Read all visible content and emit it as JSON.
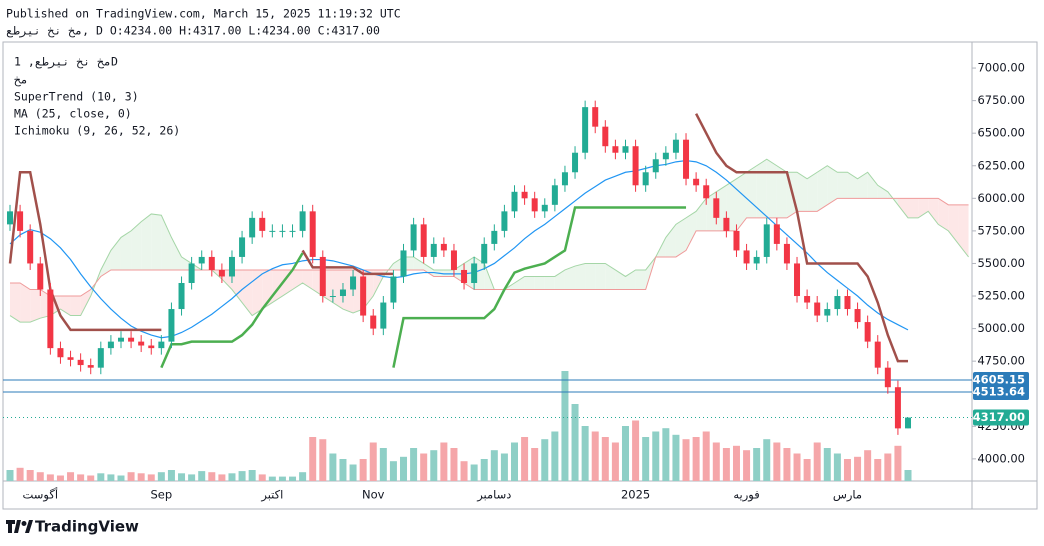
{
  "chart_data": {
    "type": "candlestick",
    "header": "Published on TradingView.com, March 15, 2025 11:19:32 UTC",
    "symbol_line": "مخ نخ نیرطع, D O:4234.00 H:4317.00 L:4234.00 C:4317.00",
    "legend": [
      "مخ نخ نیرطع, 1D",
      "مخ"
    ],
    "footer": "TradingView",
    "categories": [
      null,
      null,
      null,
      "أگوست",
      null,
      null,
      null,
      null,
      null,
      null,
      null,
      null,
      null,
      null,
      null,
      "Sep",
      null,
      null,
      null,
      null,
      null,
      null,
      null,
      null,
      null,
      null,
      "اكتبر",
      null,
      null,
      null,
      null,
      null,
      null,
      null,
      null,
      null,
      "Nov",
      null,
      null,
      null,
      null,
      null,
      null,
      null,
      null,
      null,
      null,
      null,
      "دسامبر",
      null,
      null,
      null,
      null,
      null,
      null,
      null,
      null,
      null,
      null,
      null,
      null,
      null,
      "2025",
      null,
      null,
      null,
      null,
      null,
      null,
      null,
      null,
      null,
      null,
      "فوريه",
      null,
      null,
      null,
      null,
      null,
      null,
      null,
      null,
      null,
      "مارس",
      null,
      null,
      null,
      null,
      null,
      null,
      null,
      null,
      null,
      null,
      null,
      null
    ],
    "open": [
      5800,
      5900,
      5750,
      5500,
      5300,
      4850,
      4780,
      4760,
      4720,
      4700,
      4850,
      4900,
      4930,
      4900,
      4870,
      4850,
      4900,
      5150,
      5350,
      5500,
      5550,
      5450,
      5400,
      5550,
      5700,
      5850,
      5750,
      5750,
      5750,
      5750,
      5900,
      5550,
      5250,
      5250,
      5300,
      5400,
      5100,
      5000,
      5200,
      5400,
      5600,
      5800,
      5550,
      5650,
      5600,
      5450,
      5350,
      5500,
      5650,
      5750,
      5900,
      6050,
      6000,
      5900,
      5950,
      6100,
      6200,
      6350,
      6700,
      6550,
      6400,
      6350,
      6400,
      6100,
      6200,
      6300,
      6350,
      6450,
      6150,
      6100,
      6000,
      5850,
      5750,
      5600,
      5500,
      5550,
      5800,
      5650,
      5500,
      5250,
      5200,
      5100,
      5150,
      5250,
      5150,
      5050,
      4900,
      4700,
      4550,
      4234,
      null,
      null,
      null,
      null,
      null,
      null
    ],
    "high": [
      5950,
      5950,
      5800,
      5550,
      5350,
      4900,
      4830,
      4810,
      4770,
      4900,
      4950,
      4980,
      4980,
      4950,
      4920,
      4950,
      5200,
      5400,
      5550,
      5600,
      5600,
      5500,
      5600,
      5750,
      5900,
      5900,
      5800,
      5800,
      5800,
      5950,
      5950,
      5600,
      5300,
      5350,
      5450,
      5450,
      5150,
      5250,
      5450,
      5650,
      5850,
      5850,
      5700,
      5700,
      5650,
      5500,
      5550,
      5700,
      5800,
      5950,
      6100,
      6100,
      6050,
      6000,
      6150,
      6250,
      6400,
      6750,
      6750,
      6600,
      6450,
      6450,
      6450,
      6250,
      6350,
      6400,
      6500,
      6500,
      6200,
      6150,
      6050,
      5900,
      5800,
      5650,
      5600,
      5850,
      5850,
      5700,
      5550,
      5300,
      5250,
      5200,
      5300,
      5300,
      5200,
      5100,
      4950,
      4750,
      4600,
      4317,
      null,
      null,
      null,
      null,
      null,
      null
    ],
    "low": [
      5750,
      5700,
      5450,
      5250,
      4800,
      4730,
      4710,
      4670,
      4650,
      4650,
      4800,
      4850,
      4850,
      4820,
      4800,
      4800,
      4850,
      5100,
      5300,
      5450,
      5400,
      5350,
      5350,
      5500,
      5650,
      5700,
      5700,
      5700,
      5700,
      5700,
      5500,
      5200,
      5200,
      5200,
      5250,
      5050,
      4950,
      4950,
      5150,
      5350,
      5550,
      5500,
      5500,
      5550,
      5400,
      5300,
      5300,
      5450,
      5600,
      5700,
      5850,
      5950,
      5850,
      5850,
      5900,
      6050,
      6150,
      6300,
      6500,
      6350,
      6300,
      6300,
      6050,
      6050,
      6150,
      6250,
      6300,
      6100,
      6050,
      5950,
      5800,
      5700,
      5550,
      5450,
      5450,
      5500,
      5600,
      5450,
      5200,
      5150,
      5050,
      5050,
      5100,
      5100,
      5000,
      4850,
      4650,
      4500,
      4184,
      4234,
      null,
      null,
      null,
      null,
      null,
      null
    ],
    "close": [
      5900,
      5750,
      5500,
      5300,
      4850,
      4780,
      4760,
      4720,
      4700,
      4850,
      4900,
      4930,
      4900,
      4870,
      4850,
      4900,
      5150,
      5350,
      5500,
      5550,
      5450,
      5400,
      5550,
      5700,
      5850,
      5750,
      5750,
      5750,
      5750,
      5900,
      5550,
      5250,
      5250,
      5300,
      5400,
      5100,
      5000,
      5200,
      5400,
      5600,
      5800,
      5550,
      5650,
      5600,
      5450,
      5350,
      5500,
      5650,
      5750,
      5900,
      6050,
      6000,
      5900,
      5950,
      6100,
      6200,
      6350,
      6700,
      6550,
      6400,
      6350,
      6400,
      6100,
      6200,
      6300,
      6350,
      6450,
      6150,
      6100,
      6000,
      5850,
      5750,
      5600,
      5500,
      5550,
      5800,
      5650,
      5500,
      5250,
      5200,
      5100,
      5150,
      5250,
      5150,
      5050,
      4900,
      4700,
      4550,
      4234,
      4317,
      null,
      null,
      null,
      null,
      null,
      null
    ],
    "volume": [
      10,
      12,
      10,
      8,
      6,
      5,
      8,
      6,
      5,
      7,
      6,
      5,
      8,
      7,
      6,
      8,
      10,
      7,
      6,
      9,
      8,
      6,
      7,
      9,
      10,
      6,
      4,
      4,
      4,
      8,
      40,
      38,
      25,
      20,
      15,
      20,
      35,
      30,
      18,
      22,
      30,
      25,
      28,
      35,
      30,
      18,
      15,
      20,
      28,
      25,
      35,
      40,
      30,
      38,
      45,
      100,
      70,
      50,
      45,
      40,
      35,
      50,
      55,
      40,
      45,
      48,
      42,
      38,
      40,
      45,
      35,
      30,
      32,
      28,
      30,
      38,
      35,
      30,
      25,
      20,
      35,
      30,
      25,
      20,
      22,
      28,
      20,
      25,
      32,
      10,
      null,
      null,
      null,
      null,
      null,
      null
    ],
    "vlim": [
      0,
      100
    ],
    "up_color": "#22ab94",
    "down_color": "#f23645",
    "volume_up_color": "#8ecfc6",
    "volume_down_color": "#f5a6a9",
    "ylim": [
      3830,
      7200
    ],
    "yticks": [
      {
        "value": 4000,
        "label": "4000.00"
      },
      {
        "value": 4250,
        "label": "4250.00"
      },
      {
        "value": 4500,
        "label": "4500.00"
      },
      {
        "value": 4750,
        "label": "4750.00"
      },
      {
        "value": 5000,
        "label": "5000.00"
      },
      {
        "value": 5250,
        "label": "5250.00"
      },
      {
        "value": 5500,
        "label": "5500.00"
      },
      {
        "value": 5750,
        "label": "5750.00"
      },
      {
        "value": 6000,
        "label": "6000.00"
      },
      {
        "value": 6250,
        "label": "6250.00"
      },
      {
        "value": 6500,
        "label": "6500.00"
      },
      {
        "value": 6750,
        "label": "6750.00"
      },
      {
        "value": 7000,
        "label": "7000.00"
      }
    ],
    "price_lines": [
      {
        "value": 4605.15,
        "color": "#2b7bb9",
        "style": "solid"
      },
      {
        "value": 4513.64,
        "color": "#2b7bb9",
        "style": "solid"
      },
      {
        "value": {
          "value": 4317,
          "label": "4317.00"
        },
        "color": "#22ab94",
        "style": "dotted"
      }
    ],
    "supertrend": {
      "label": "SuperTrend (10, 3)",
      "up_color": "#4caf50",
      "down_color": "#a1504b",
      "up": [
        null,
        null,
        null,
        null,
        null,
        null,
        null,
        null,
        null,
        null,
        null,
        null,
        null,
        null,
        null,
        4700,
        4880,
        4880,
        4900,
        4900,
        4900,
        4900,
        4900,
        4950,
        5030,
        5150,
        5250,
        5350,
        5450,
        5580,
        null,
        null,
        null,
        null,
        null,
        null,
        null,
        null,
        4700,
        5080,
        5080,
        5080,
        5080,
        5080,
        5080,
        5080,
        5080,
        5080,
        5150,
        5300,
        5430,
        5460,
        5480,
        5500,
        5550,
        5600,
        5930,
        5930,
        5930,
        5930,
        5930,
        5930,
        5930,
        5930,
        5930,
        5930,
        5930,
        5930,
        null,
        null,
        null,
        null,
        null,
        null,
        null,
        null,
        null,
        null,
        null,
        null,
        null,
        null,
        null,
        null,
        null,
        null,
        null,
        null,
        null,
        null,
        null,
        null,
        null,
        null,
        null,
        null
      ],
      "down": [
        5500,
        6200,
        6200,
        5800,
        5300,
        5100,
        4990,
        4990,
        4990,
        4990,
        4990,
        4990,
        4990,
        4990,
        4990,
        4990,
        null,
        null,
        null,
        null,
        null,
        null,
        null,
        null,
        null,
        null,
        null,
        null,
        null,
        5600,
        5470,
        5470,
        5470,
        5470,
        5470,
        5420,
        5420,
        5420,
        5420,
        null,
        null,
        null,
        null,
        null,
        null,
        null,
        null,
        null,
        null,
        null,
        null,
        null,
        null,
        null,
        null,
        null,
        null,
        null,
        null,
        null,
        null,
        null,
        null,
        null,
        null,
        null,
        null,
        null,
        6650,
        6500,
        6350,
        6250,
        6200,
        6200,
        6200,
        6200,
        6200,
        6200,
        5900,
        5500,
        5500,
        5500,
        5500,
        5500,
        5500,
        5400,
        5200,
        4950,
        4750,
        4750,
        null,
        null,
        null,
        null,
        null,
        null
      ]
    },
    "ma": {
      "label": "MA (25, close, 0)",
      "color": "#2196f3",
      "values": [
        5650,
        5720,
        5760,
        5740,
        5690,
        5620,
        5530,
        5420,
        5320,
        5230,
        5150,
        5080,
        5020,
        4980,
        4950,
        4930,
        4940,
        4970,
        5010,
        5060,
        5110,
        5170,
        5230,
        5300,
        5360,
        5420,
        5460,
        5490,
        5500,
        5520,
        5530,
        5530,
        5520,
        5500,
        5480,
        5450,
        5420,
        5400,
        5390,
        5400,
        5420,
        5430,
        5430,
        5420,
        5420,
        5420,
        5430,
        5460,
        5500,
        5560,
        5620,
        5690,
        5750,
        5800,
        5860,
        5920,
        5980,
        6040,
        6090,
        6140,
        6170,
        6200,
        6210,
        6230,
        6250,
        6260,
        6280,
        6290,
        6280,
        6250,
        6200,
        6140,
        6070,
        6000,
        5930,
        5860,
        5790,
        5720,
        5650,
        5580,
        5500,
        5430,
        5370,
        5310,
        5250,
        5180,
        5120,
        5070,
        5030,
        4990,
        null,
        null,
        null,
        null,
        null,
        null
      ]
    },
    "ichimoku": {
      "label": "Ichimoku (9, 26, 52, 26)",
      "span_a_color": "#a5d6a7",
      "span_b_color": "#ef9a9a",
      "fill_up_color": "#e8f5e9",
      "fill_down_color": "#fde3e3",
      "span_a": [
        5100,
        5050,
        5050,
        5080,
        5100,
        5150,
        5100,
        5100,
        5250,
        5450,
        5600,
        5700,
        5750,
        5820,
        5880,
        5870,
        5700,
        5550,
        5500,
        5450,
        5450,
        5380,
        5300,
        5200,
        5100,
        5150,
        5200,
        5250,
        5300,
        5350,
        5300,
        5250,
        5200,
        5150,
        5120,
        5150,
        5250,
        5400,
        5500,
        5550,
        5550,
        5500,
        5450,
        5450,
        5450,
        5500,
        5550,
        5500,
        5300,
        5300,
        5350,
        5400,
        5400,
        5400,
        5400,
        5450,
        5480,
        5500,
        5500,
        5500,
        5450,
        5400,
        5450,
        5450,
        5550,
        5700,
        5800,
        5850,
        5900,
        6000,
        6050,
        6100,
        6150,
        6200,
        6250,
        6300,
        6250,
        6200,
        6200,
        6150,
        6200,
        6250,
        6200,
        6200,
        6150,
        6200,
        6100,
        6050,
        5950,
        5850,
        5850,
        5900,
        5800,
        5750,
        5650,
        5550
      ],
      "span_b": [
        5350,
        5350,
        5300,
        5300,
        5250,
        5250,
        5250,
        5250,
        5300,
        5400,
        5450,
        5450,
        5450,
        5450,
        5450,
        5450,
        5450,
        5450,
        5450,
        5450,
        5450,
        5450,
        5450,
        5450,
        5450,
        5450,
        5450,
        5450,
        5450,
        5450,
        5450,
        5450,
        5450,
        5450,
        5450,
        5450,
        5450,
        5450,
        5450,
        5450,
        5450,
        5450,
        5400,
        5400,
        5400,
        5350,
        5300,
        5300,
        5300,
        5300,
        5300,
        5300,
        5300,
        5300,
        5300,
        5300,
        5300,
        5300,
        5300,
        5300,
        5300,
        5300,
        5300,
        5300,
        5550,
        5550,
        5550,
        5600,
        5750,
        5750,
        5750,
        5750,
        5750,
        5850,
        5850,
        5850,
        5850,
        5850,
        5900,
        5900,
        5900,
        5950,
        6000,
        6000,
        6000,
        6000,
        6000,
        6000,
        6000,
        6000,
        6000,
        6000,
        6000,
        5950,
        5950,
        5950
      ]
    }
  }
}
